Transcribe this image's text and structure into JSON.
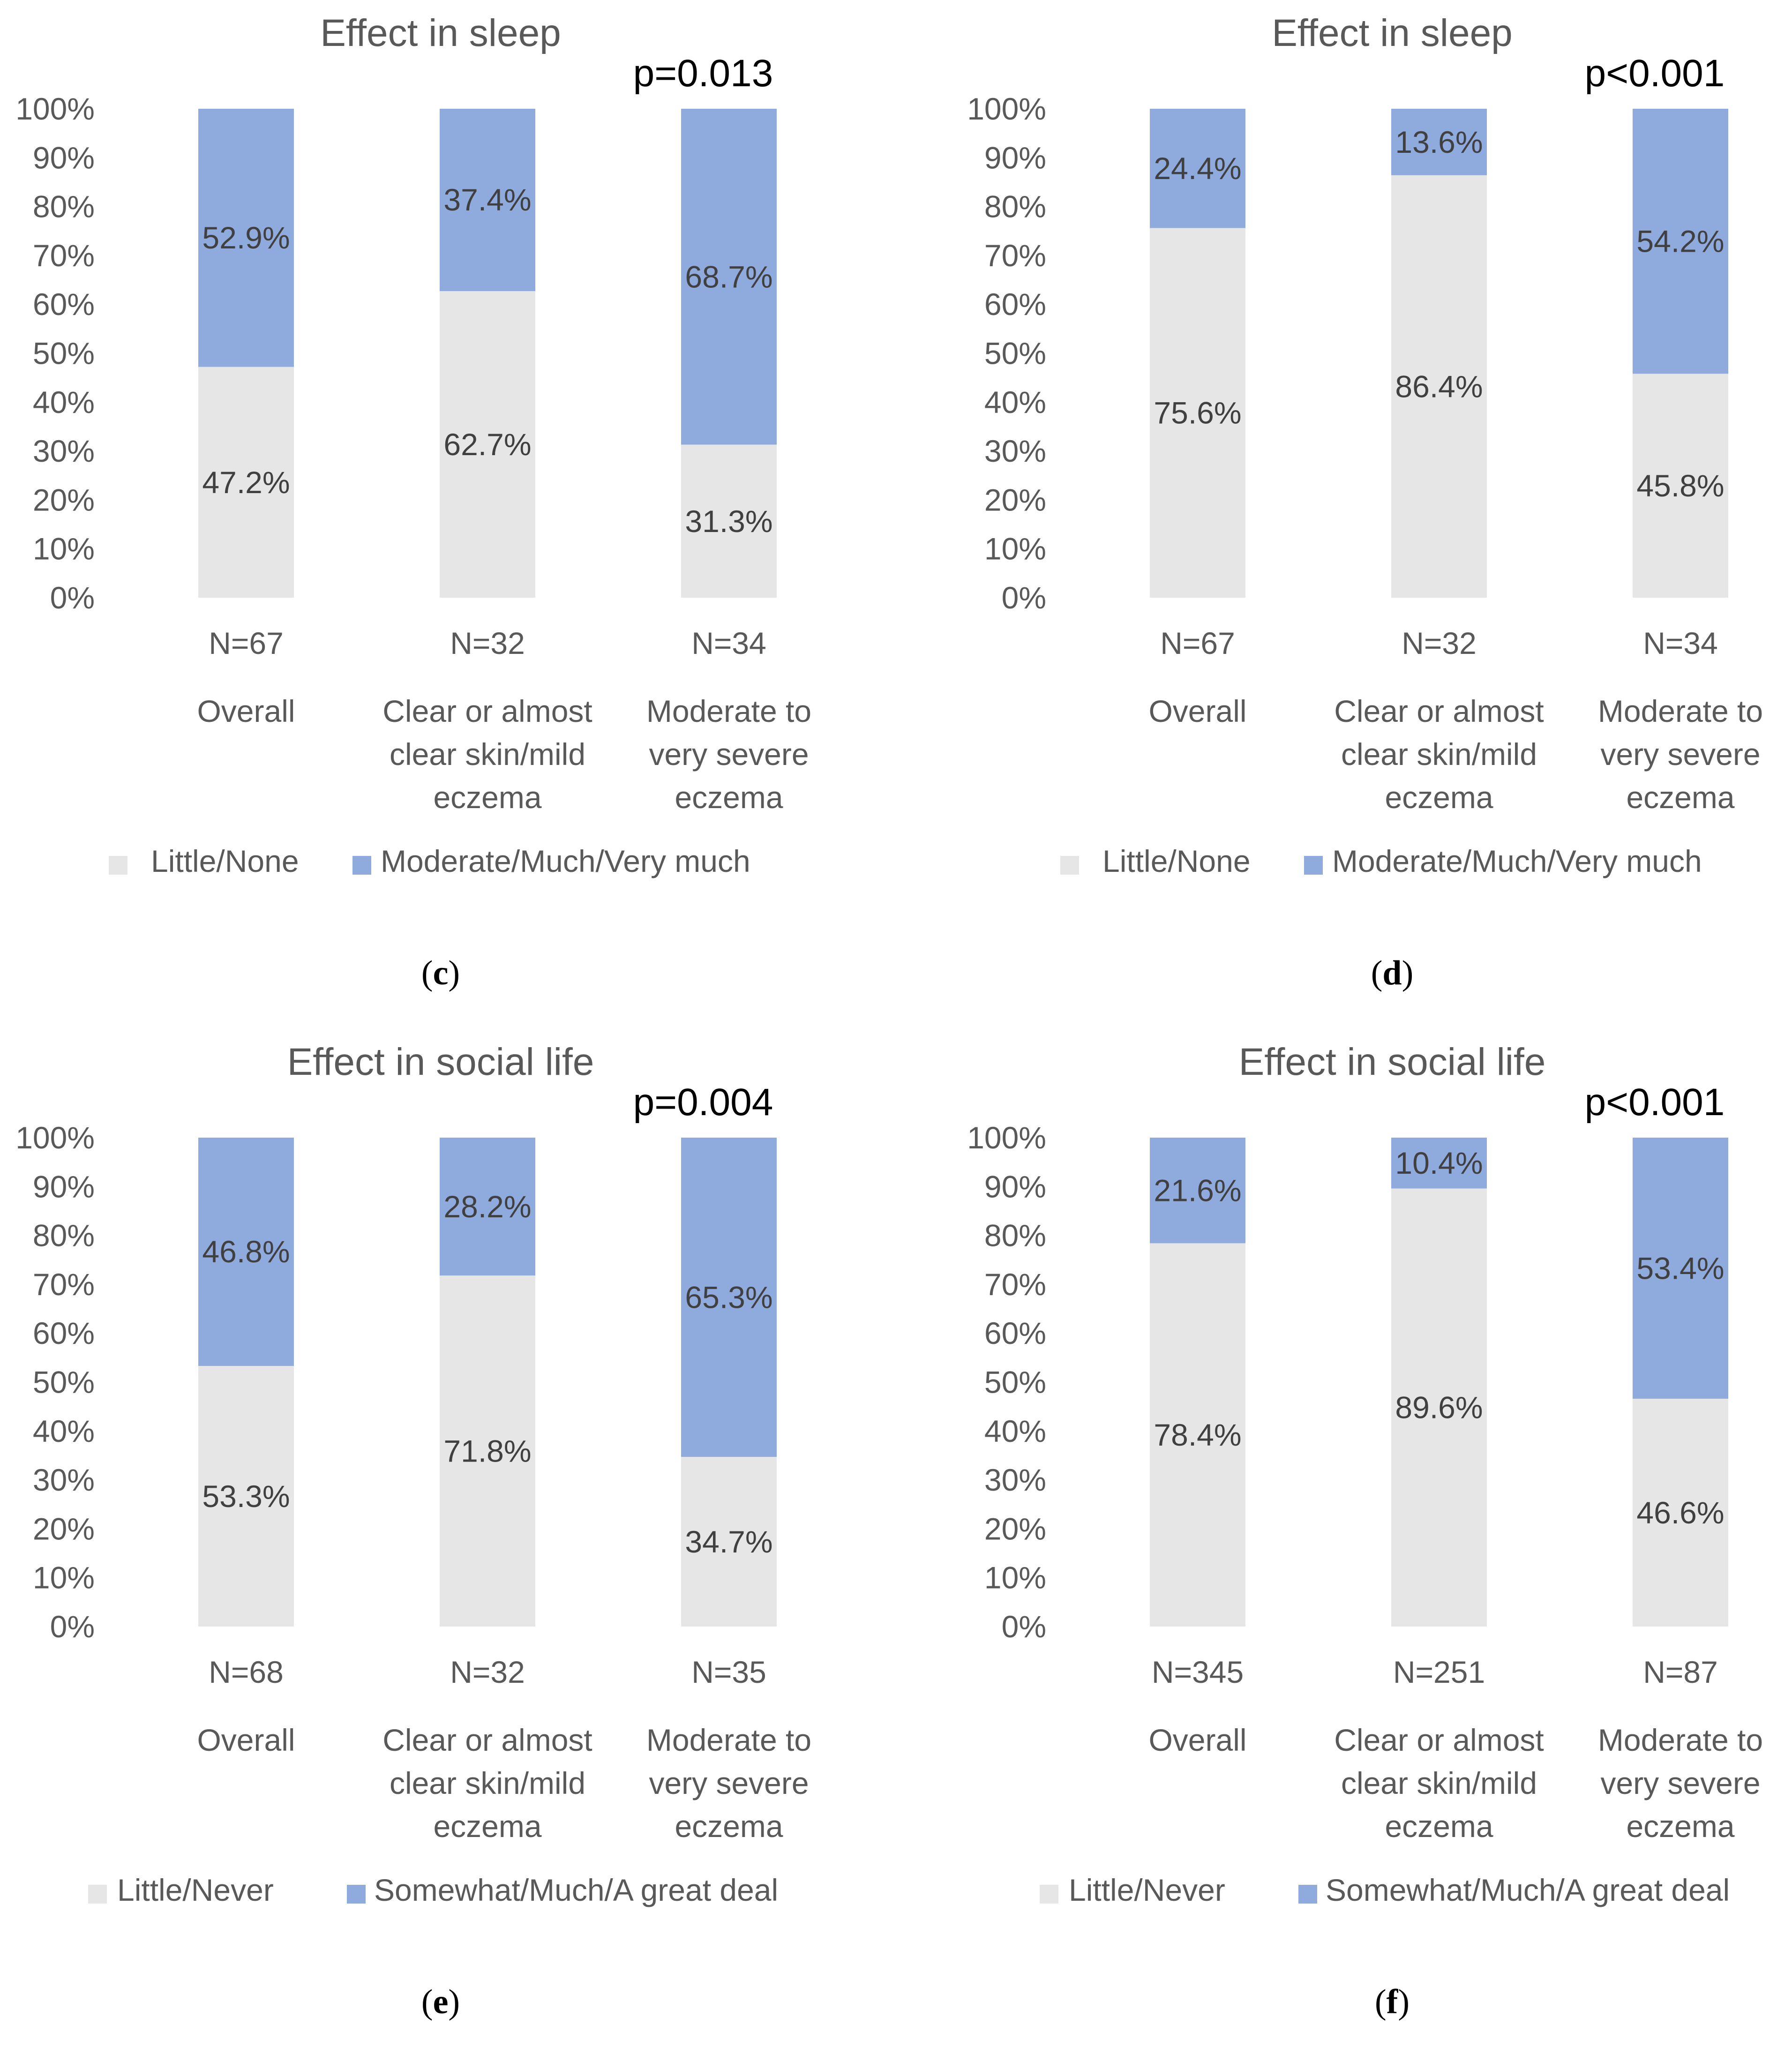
{
  "chart_data": [
    {
      "type": "bar",
      "stacked": true,
      "panel_label": "c",
      "title": "Effect in sleep",
      "annotation": "p=0.013",
      "ylim": [
        0,
        100
      ],
      "yticks": [
        "0%",
        "10%",
        "20%",
        "30%",
        "40%",
        "50%",
        "60%",
        "70%",
        "80%",
        "90%",
        "100%"
      ],
      "categories": [
        {
          "n": "N=67",
          "label": [
            "Overall"
          ]
        },
        {
          "n": "N=32",
          "label": [
            "Clear or almost",
            "clear skin/mild",
            "eczema"
          ]
        },
        {
          "n": "N=34",
          "label": [
            "Moderate to",
            "very severe",
            "eczema"
          ]
        }
      ],
      "series": [
        {
          "name": "Little/None",
          "color": "#e7e6e6",
          "values": [
            47.2,
            62.7,
            31.3
          ],
          "labels": [
            "47.2%",
            "62.7%",
            "31.3%"
          ]
        },
        {
          "name": "Moderate/Much/Very much",
          "color": "#8faadc",
          "values": [
            52.9,
            37.4,
            68.7
          ],
          "labels": [
            "52.9%",
            "37.4%",
            "68.7%"
          ]
        }
      ],
      "legend_position": "bottom"
    },
    {
      "type": "bar",
      "stacked": true,
      "panel_label": "d",
      "title": "Effect in sleep",
      "annotation": "p<0.001",
      "ylim": [
        0,
        100
      ],
      "yticks": [
        "0%",
        "10%",
        "20%",
        "30%",
        "40%",
        "50%",
        "60%",
        "70%",
        "80%",
        "90%",
        "100%"
      ],
      "categories": [
        {
          "n": "N=67",
          "label": [
            "Overall"
          ]
        },
        {
          "n": "N=32",
          "label": [
            "Clear or almost",
            "clear skin/mild",
            "eczema"
          ]
        },
        {
          "n": "N=34",
          "label": [
            "Moderate to",
            "very severe",
            "eczema"
          ]
        }
      ],
      "series": [
        {
          "name": "Little/None",
          "color": "#e7e6e6",
          "values": [
            75.6,
            86.4,
            45.8
          ],
          "labels": [
            "75.6%",
            "86.4%",
            "45.8%"
          ]
        },
        {
          "name": "Moderate/Much/Very much",
          "color": "#8faadc",
          "values": [
            24.4,
            13.6,
            54.2
          ],
          "labels": [
            "24.4%",
            "13.6%",
            "54.2%"
          ]
        }
      ],
      "legend_position": "bottom"
    },
    {
      "type": "bar",
      "stacked": true,
      "panel_label": "e",
      "title": "Effect in social life",
      "annotation": "p=0.004",
      "ylim": [
        0,
        100
      ],
      "yticks": [
        "0%",
        "10%",
        "20%",
        "30%",
        "40%",
        "50%",
        "60%",
        "70%",
        "80%",
        "90%",
        "100%"
      ],
      "categories": [
        {
          "n": "N=68",
          "label": [
            "Overall"
          ]
        },
        {
          "n": "N=32",
          "label": [
            "Clear or almost",
            "clear skin/mild",
            "eczema"
          ]
        },
        {
          "n": "N=35",
          "label": [
            "Moderate to",
            "very severe",
            "eczema"
          ]
        }
      ],
      "series": [
        {
          "name": "Little/Never",
          "color": "#e7e6e6",
          "values": [
            53.3,
            71.8,
            34.7
          ],
          "labels": [
            "53.3%",
            "71.8%",
            "34.7%"
          ]
        },
        {
          "name": "Somewhat/Much/A great deal",
          "color": "#8faadc",
          "values": [
            46.8,
            28.2,
            65.3
          ],
          "labels": [
            "46.8%",
            "28.2%",
            "65.3%"
          ]
        }
      ],
      "legend_position": "bottom"
    },
    {
      "type": "bar",
      "stacked": true,
      "panel_label": "f",
      "title": "Effect in social life",
      "annotation": "p<0.001",
      "ylim": [
        0,
        100
      ],
      "yticks": [
        "0%",
        "10%",
        "20%",
        "30%",
        "40%",
        "50%",
        "60%",
        "70%",
        "80%",
        "90%",
        "100%"
      ],
      "categories": [
        {
          "n": "N=345",
          "label": [
            "Overall"
          ]
        },
        {
          "n": "N=251",
          "label": [
            "Clear or almost",
            "clear skin/mild",
            "eczema"
          ]
        },
        {
          "n": "N=87",
          "label": [
            "Moderate to",
            "very severe",
            "eczema"
          ]
        }
      ],
      "series": [
        {
          "name": "Little/Never",
          "color": "#e7e6e6",
          "values": [
            78.4,
            89.6,
            46.6
          ],
          "labels": [
            "78.4%",
            "89.6%",
            "46.6%"
          ]
        },
        {
          "name": "Somewhat/Much/A great deal",
          "color": "#8faadc",
          "values": [
            21.6,
            10.4,
            53.4
          ],
          "labels": [
            "21.6%",
            "10.4%",
            "53.4%"
          ]
        }
      ],
      "legend_position": "bottom"
    }
  ]
}
